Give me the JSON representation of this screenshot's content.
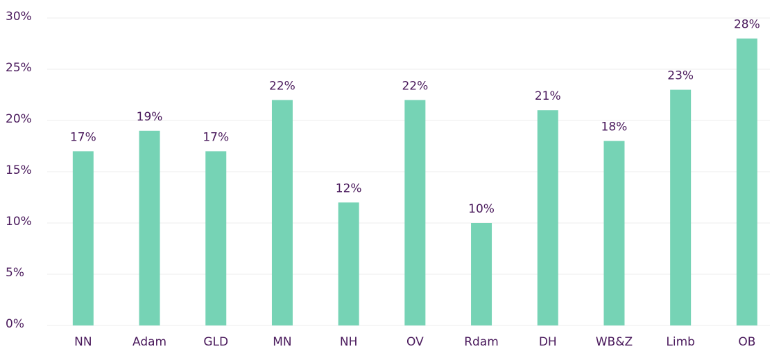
{
  "chart_data": {
    "type": "bar",
    "categories": [
      "NN",
      "Adam",
      "GLD",
      "MN",
      "NH",
      "OV",
      "Rdam",
      "DH",
      "WB&Z",
      "Limb",
      "OB"
    ],
    "values": [
      17,
      19,
      17,
      22,
      12,
      22,
      10,
      21,
      18,
      23,
      28
    ],
    "value_labels": [
      "17%",
      "19%",
      "17%",
      "22%",
      "12%",
      "22%",
      "10%",
      "21%",
      "18%",
      "23%",
      "28%"
    ],
    "color": "#76d3b5",
    "ylim": [
      0,
      30
    ],
    "yticks": [
      {
        "value": 0,
        "label": "0%"
      },
      {
        "value": 5,
        "label": "5%"
      },
      {
        "value": 10,
        "label": "10%"
      },
      {
        "value": 15,
        "label": "15%"
      },
      {
        "value": 20,
        "label": "20%"
      },
      {
        "value": 25,
        "label": "25%"
      },
      {
        "value": 30,
        "label": "30%"
      }
    ],
    "grid": true
  }
}
